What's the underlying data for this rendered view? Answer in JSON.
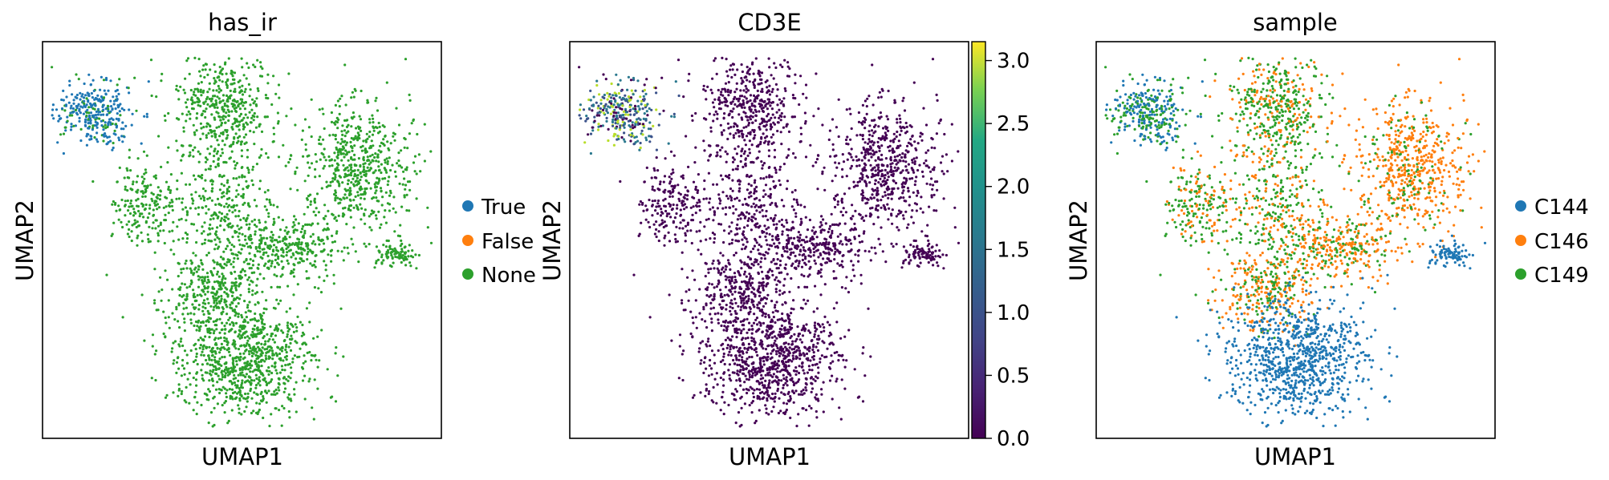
{
  "chart_data": [
    {
      "type": "scatter",
      "title": "has_ir",
      "xlabel": "UMAP1",
      "ylabel": "UMAP2",
      "legend": {
        "placement": "right",
        "entries": [
          {
            "label": "True",
            "color": "#1f77b4"
          },
          {
            "label": "False",
            "color": "#ff7f0e"
          },
          {
            "label": "None",
            "color": "#2ca02c"
          }
        ]
      },
      "series": [
        {
          "name": "True",
          "color": "#1f77b4",
          "share": 0.07
        },
        {
          "name": "None",
          "color": "#2ca02c",
          "share": 0.93
        }
      ]
    },
    {
      "type": "scatter",
      "title": "CD3E",
      "xlabel": "UMAP1",
      "ylabel": "UMAP2",
      "colorbar": {
        "colormap": "viridis",
        "range": [
          0.0,
          3.15
        ],
        "ticks": [
          "0.0",
          "0.5",
          "1.0",
          "1.5",
          "2.0",
          "2.5",
          "3.0"
        ],
        "tick_values": [
          0.0,
          0.5,
          1.0,
          1.5,
          2.0,
          2.5,
          3.0
        ]
      }
    },
    {
      "type": "scatter",
      "title": "sample",
      "xlabel": "UMAP1",
      "ylabel": "UMAP2",
      "legend": {
        "placement": "right",
        "entries": [
          {
            "label": "C144",
            "color": "#1f77b4"
          },
          {
            "label": "C146",
            "color": "#ff7f0e"
          },
          {
            "label": "C149",
            "color": "#2ca02c"
          }
        ]
      }
    }
  ]
}
